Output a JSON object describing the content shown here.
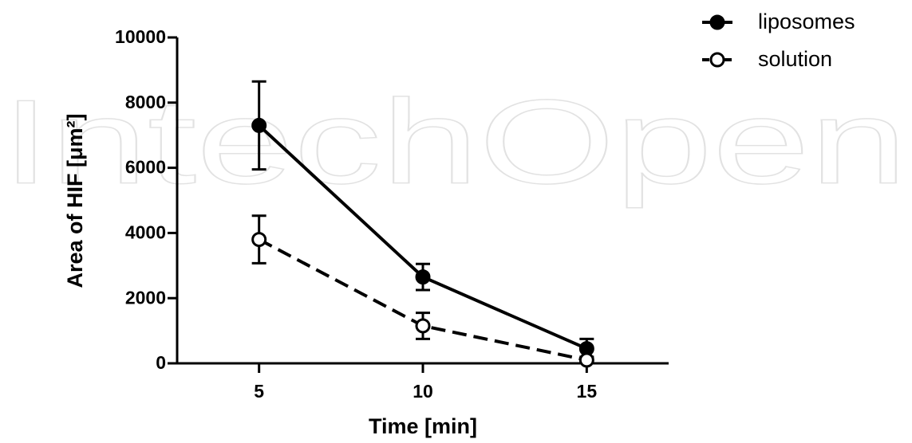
{
  "chart_data": {
    "type": "line",
    "watermark": "IntechOpen",
    "x_label": "Time [min]",
    "y_label": "Area of HIF [μm²]",
    "x": [
      5,
      10,
      15
    ],
    "xlim": [
      2.5,
      17.5
    ],
    "xticks": [
      5,
      10,
      15
    ],
    "ylim": [
      0,
      10000
    ],
    "yticks": [
      0,
      2000,
      4000,
      6000,
      8000,
      10000
    ],
    "legend": "top-right",
    "series": [
      {
        "name": "liposomes",
        "color": "#000000",
        "line_style": "solid",
        "marker_fill": "filled",
        "values": [
          7300,
          2650,
          450
        ],
        "errors": [
          1350,
          400,
          300
        ]
      },
      {
        "name": "solution",
        "color": "#000000",
        "line_style": "dashed",
        "marker_fill": "open",
        "values": [
          3800,
          1150,
          100
        ],
        "errors": [
          730,
          400,
          100
        ]
      }
    ]
  }
}
